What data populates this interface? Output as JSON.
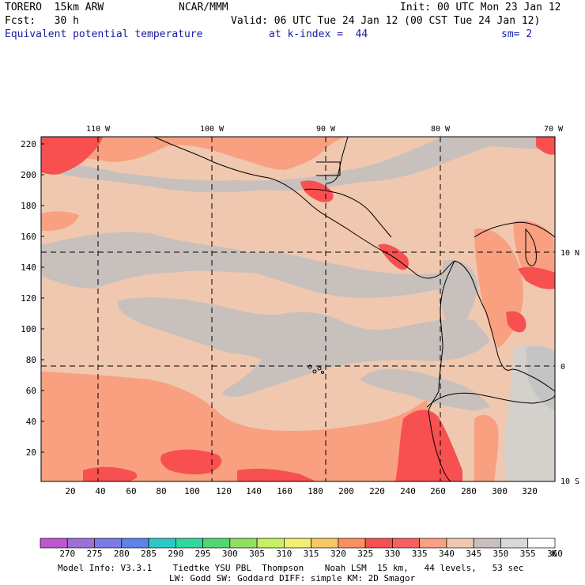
{
  "header": {
    "model": "TORERO  15km ARW",
    "center": "NCAR/MMM",
    "init": "Init: 00 UTC Mon 23 Jan 12",
    "fcst": "Fcst:   30 h",
    "valid": "Valid: 06 UTC Tue 24 Jan 12 (00 CST Tue 24 Jan 12)",
    "field": "Equivalent potential temperature",
    "level": "at k-index =  44",
    "smooth": "sm= 2"
  },
  "map": {
    "top_lon_labels": [
      "110 W",
      "100 W",
      "90 W",
      "80 W",
      "70 W"
    ],
    "right_lat_labels": [
      "10 N",
      "0",
      "10 S"
    ],
    "y_grid_labels": [
      "220",
      "200",
      "180",
      "160",
      "140",
      "120",
      "100",
      "80",
      "60",
      "40",
      "20"
    ],
    "x_grid_labels": [
      "20",
      "40",
      "60",
      "80",
      "100",
      "120",
      "140",
      "160",
      "180",
      "200",
      "220",
      "240",
      "260",
      "280",
      "300",
      "320"
    ]
  },
  "colorbar": {
    "unit": "K",
    "values": [
      "270",
      "275",
      "280",
      "285",
      "290",
      "295",
      "300",
      "305",
      "310",
      "315",
      "320",
      "325",
      "330",
      "335",
      "340",
      "345",
      "350",
      "355",
      "360"
    ],
    "colors": [
      "#c055d0",
      "#9d70d8",
      "#7b7be8",
      "#5c84e8",
      "#2ec8c8",
      "#30d8a0",
      "#50d870",
      "#90e060",
      "#c8f060",
      "#f0f070",
      "#f8c860",
      "#f89060",
      "#f85050",
      "#f86060",
      "#f8a080",
      "#f0c8b0",
      "#c8c0bc",
      "#d8d8d8",
      "#ffffff"
    ]
  },
  "footer": {
    "line1": "Model Info: V3.3.1    Tiedtke YSU PBL  Thompson    Noah LSM  15 km,   44 levels,   53 sec",
    "line2": "LW: Godd SW: Goddard DIFF: simple KM: 2D Smagor"
  }
}
